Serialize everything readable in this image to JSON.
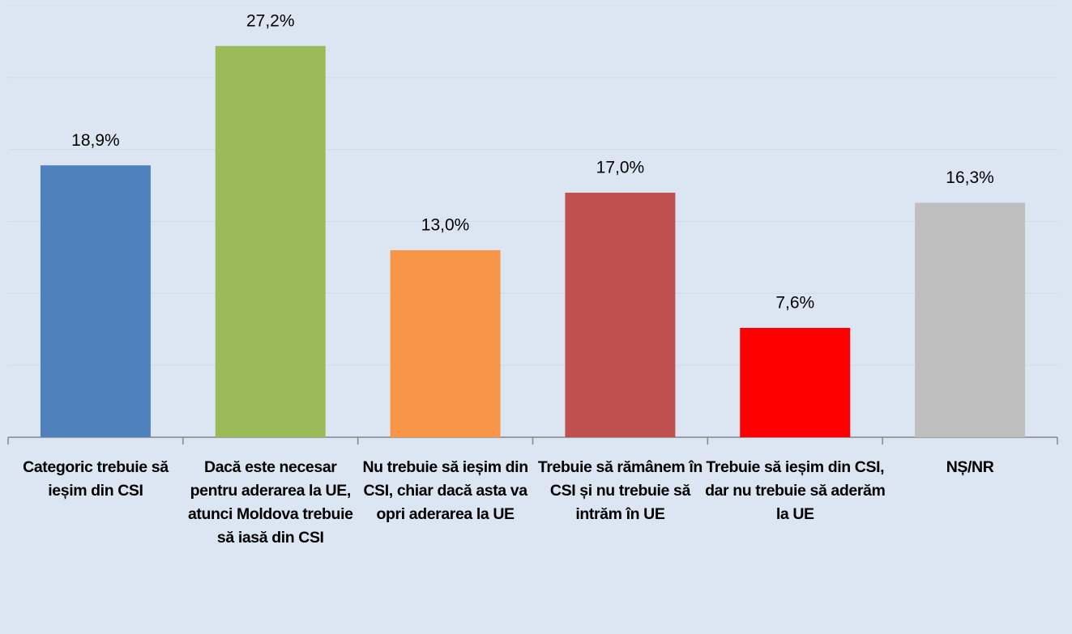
{
  "chart_data": {
    "type": "bar",
    "categories": [
      "Categoric trebuie să ieșim din CSI",
      "Dacă este necesar pentru aderarea la UE, atunci Moldova trebuie să iasă din CSI",
      "Nu trebuie să ieșim din CSI, chiar dacă asta va opri aderarea la UE",
      "Trebuie să rămânem în CSI și nu trebuie să intrăm în UE",
      "Trebuie să ieșim din CSI, dar nu trebuie să aderăm la UE",
      "NȘ/NR"
    ],
    "values": [
      18.9,
      27.2,
      13.0,
      17.0,
      7.6,
      16.3
    ],
    "value_labels": [
      "18,9%",
      "27,2%",
      "13,0%",
      "17,0%",
      "7,6%",
      "16,3%"
    ],
    "colors": [
      "#4f81bd",
      "#9bbb59",
      "#f79646",
      "#c0504d",
      "#ff0000",
      "#bfbfbf"
    ],
    "ylim": [
      0,
      30
    ],
    "yticks": [
      0,
      5,
      10,
      15,
      20,
      25,
      30
    ],
    "grid": true
  }
}
